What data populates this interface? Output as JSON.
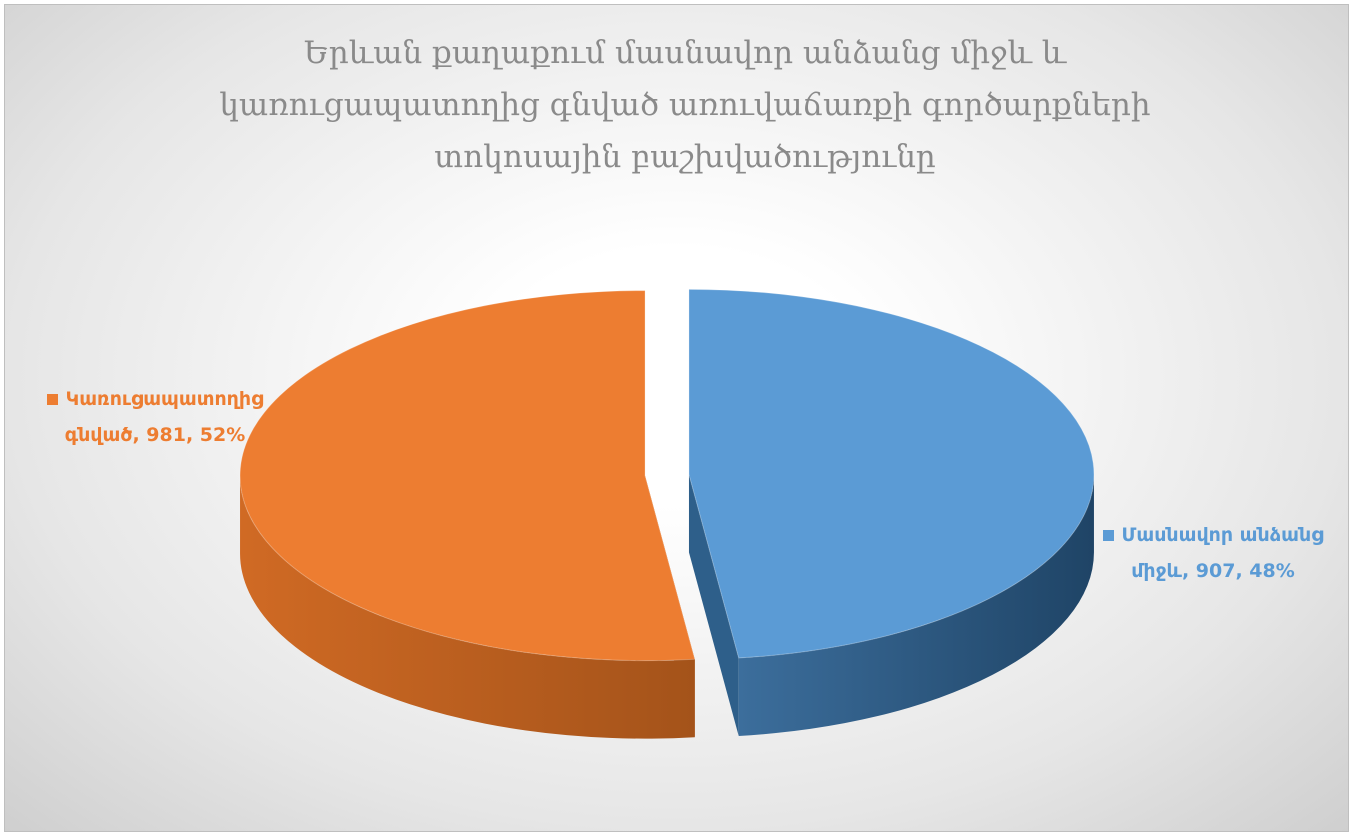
{
  "chart_data": {
    "type": "pie",
    "title": "Երևան քաղաքում մասնավոր անձանց միջև և կառուցապատողից գնված առուվաճառքի գործարքների տոկոսային բաշխվածությունը",
    "labels": [
      "Մասնավոր անձանց միջև, 907, 48%",
      "Կառուցապատողից գնված, 981, 52%"
    ],
    "values": [
      907,
      981
    ],
    "colors": [
      "#5b9bd5",
      "#ed7d31"
    ]
  }
}
